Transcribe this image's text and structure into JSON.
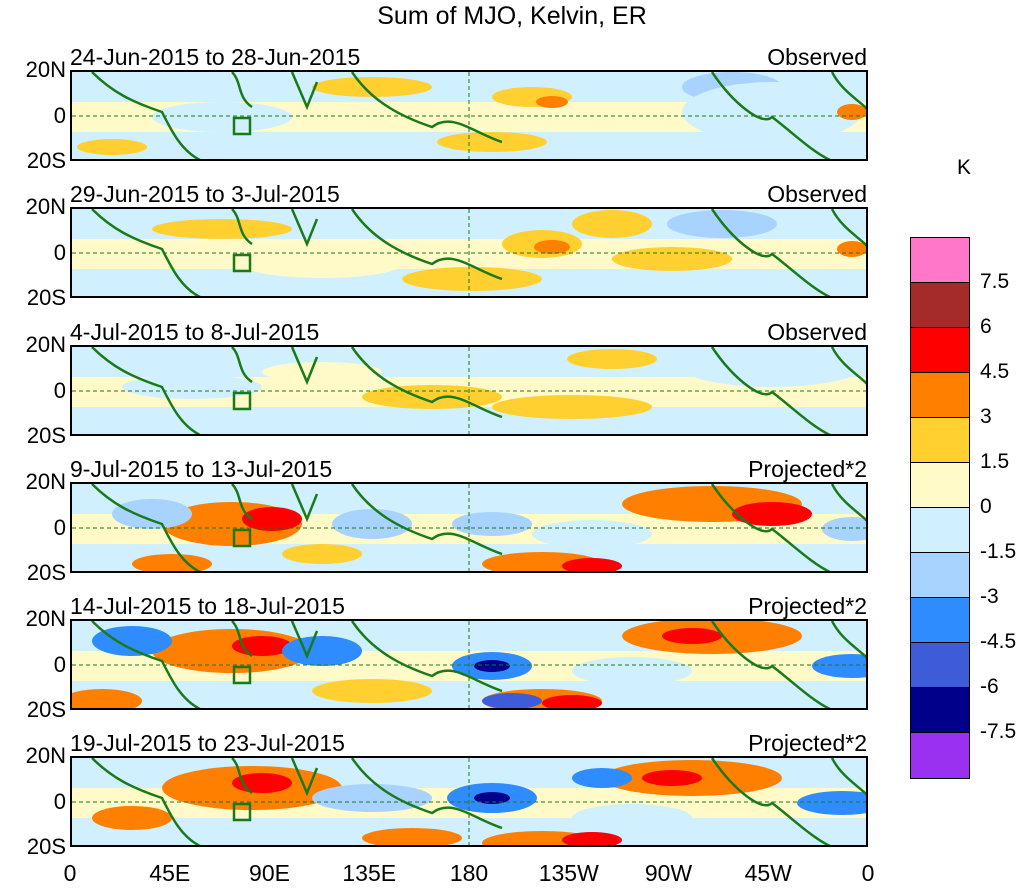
{
  "title": "Sum of MJO, Kelvin, ER",
  "panels": [
    {
      "dates": "24-Jun-2015 to 28-Jun-2015",
      "kind": "Observed"
    },
    {
      "dates": "29-Jun-2015 to 3-Jul-2015",
      "kind": "Observed"
    },
    {
      "dates": "4-Jul-2015 to 8-Jul-2015",
      "kind": "Observed"
    },
    {
      "dates": "9-Jul-2015 to 13-Jul-2015",
      "kind": "Projected*2"
    },
    {
      "dates": "14-Jul-2015 to 18-Jul-2015",
      "kind": "Projected*2"
    },
    {
      "dates": "19-Jul-2015 to 23-Jul-2015",
      "kind": "Projected*2"
    }
  ],
  "lat_labels": [
    "20N",
    "0",
    "20S"
  ],
  "lon_labels": [
    "0",
    "45E",
    "90E",
    "135E",
    "180",
    "135W",
    "90W",
    "45W",
    "0"
  ],
  "colorbar": {
    "unit": "K",
    "labels": [
      "7.5",
      "6",
      "4.5",
      "3",
      "1.5",
      "0",
      "-1.5",
      "-3",
      "-4.5",
      "-6",
      "-7.5"
    ],
    "colors": [
      "#ff77c8",
      "#a52a2a",
      "#ff0000",
      "#ff7f00",
      "#ffd030",
      "#fffac8",
      "#d0f0ff",
      "#a8d2ff",
      "#2e8cff",
      "#3f5cd8",
      "#00008b",
      "#9a30f0"
    ]
  }
}
